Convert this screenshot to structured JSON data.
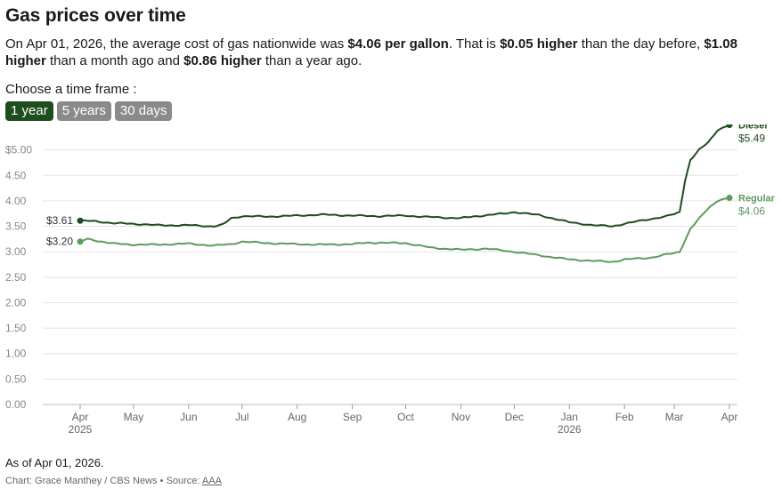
{
  "header": {
    "title": "Gas prices over time"
  },
  "summary": {
    "p1": "On Apr 01, 2026, the average cost of gas nationwide was ",
    "b1": "$4.06 per gallon",
    "p2": ". That is ",
    "b2": "$0.05 higher",
    "p3": " than the day before, ",
    "b3": "$1.08 higher",
    "p4": " than a month ago and ",
    "b4": "$0.86 higher",
    "p5": " than a year ago."
  },
  "timeframe": {
    "label": "Choose a time frame :",
    "options": [
      "1 year",
      "5 years",
      "30 days"
    ],
    "selected": "1 year"
  },
  "footer": {
    "as_of": "As of Apr 01, 2026.",
    "credit": "Chart: Grace Manthey / CBS News • Source: ",
    "source": "AAA"
  },
  "colors": {
    "diesel": "#1e4d1e",
    "regular": "#5e9a5e",
    "grid": "#e4e4e4",
    "axis_text": "#888888"
  },
  "chart_data": {
    "type": "line",
    "x_range": [
      "2025-04-01",
      "2026-04-01"
    ],
    "ylim": [
      0,
      5.5
    ],
    "yticks": [
      0,
      0.5,
      1.0,
      1.5,
      2.0,
      2.5,
      3.0,
      3.5,
      4.0,
      4.5,
      5.0
    ],
    "ytick_labels": [
      "0.00",
      "0.50",
      "1.00",
      "1.50",
      "2.00",
      "2.50",
      "3.00",
      "3.50",
      "4.00",
      "4.50",
      "$5.00"
    ],
    "grid": true,
    "xticks": [
      {
        "date": "2025-04-01",
        "label": "Apr",
        "sub": "2025"
      },
      {
        "date": "2025-05-01",
        "label": "May",
        "sub": ""
      },
      {
        "date": "2025-06-01",
        "label": "Jun",
        "sub": ""
      },
      {
        "date": "2025-07-01",
        "label": "Jul",
        "sub": ""
      },
      {
        "date": "2025-08-01",
        "label": "Aug",
        "sub": ""
      },
      {
        "date": "2025-09-01",
        "label": "Sep",
        "sub": ""
      },
      {
        "date": "2025-10-01",
        "label": "Oct",
        "sub": ""
      },
      {
        "date": "2025-11-01",
        "label": "Nov",
        "sub": ""
      },
      {
        "date": "2025-12-01",
        "label": "Dec",
        "sub": ""
      },
      {
        "date": "2026-01-01",
        "label": "Jan",
        "sub": "2026"
      },
      {
        "date": "2026-02-01",
        "label": "Feb",
        "sub": ""
      },
      {
        "date": "2026-03-01",
        "label": "Mar",
        "sub": ""
      },
      {
        "date": "2026-04-01",
        "label": "Apr",
        "sub": ""
      }
    ],
    "series": [
      {
        "name": "Diesel",
        "start_label": "$3.61",
        "end_label": "$5.49",
        "points": [
          [
            "2025-04-01",
            3.61
          ],
          [
            "2025-04-10",
            3.6
          ],
          [
            "2025-04-20",
            3.56
          ],
          [
            "2025-05-01",
            3.55
          ],
          [
            "2025-05-15",
            3.52
          ],
          [
            "2025-06-01",
            3.52
          ],
          [
            "2025-06-15",
            3.5
          ],
          [
            "2025-06-20",
            3.53
          ],
          [
            "2025-06-25",
            3.66
          ],
          [
            "2025-07-01",
            3.7
          ],
          [
            "2025-07-15",
            3.69
          ],
          [
            "2025-08-01",
            3.71
          ],
          [
            "2025-08-15",
            3.73
          ],
          [
            "2025-09-01",
            3.71
          ],
          [
            "2025-09-15",
            3.7
          ],
          [
            "2025-10-01",
            3.71
          ],
          [
            "2025-10-15",
            3.68
          ],
          [
            "2025-11-01",
            3.66
          ],
          [
            "2025-11-10",
            3.7
          ],
          [
            "2025-11-25",
            3.75
          ],
          [
            "2025-12-01",
            3.78
          ],
          [
            "2025-12-15",
            3.72
          ],
          [
            "2026-01-01",
            3.58
          ],
          [
            "2026-01-15",
            3.52
          ],
          [
            "2026-01-25",
            3.5
          ],
          [
            "2026-02-01",
            3.55
          ],
          [
            "2026-02-15",
            3.64
          ],
          [
            "2026-02-25",
            3.7
          ],
          [
            "2026-03-01",
            3.74
          ],
          [
            "2026-03-04",
            3.78
          ],
          [
            "2026-03-07",
            4.4
          ],
          [
            "2026-03-10",
            4.8
          ],
          [
            "2026-03-15",
            5.0
          ],
          [
            "2026-03-20",
            5.15
          ],
          [
            "2026-03-25",
            5.38
          ],
          [
            "2026-04-01",
            5.49
          ]
        ]
      },
      {
        "name": "Regular",
        "start_label": "$3.20",
        "end_label": "$4.06",
        "points": [
          [
            "2025-04-01",
            3.2
          ],
          [
            "2025-04-05",
            3.25
          ],
          [
            "2025-04-20",
            3.16
          ],
          [
            "2025-05-01",
            3.14
          ],
          [
            "2025-05-15",
            3.14
          ],
          [
            "2025-06-01",
            3.16
          ],
          [
            "2025-06-15",
            3.12
          ],
          [
            "2025-06-25",
            3.15
          ],
          [
            "2025-07-01",
            3.2
          ],
          [
            "2025-07-15",
            3.17
          ],
          [
            "2025-08-01",
            3.15
          ],
          [
            "2025-08-15",
            3.14
          ],
          [
            "2025-09-01",
            3.15
          ],
          [
            "2025-09-10",
            3.18
          ],
          [
            "2025-10-01",
            3.17
          ],
          [
            "2025-10-15",
            3.08
          ],
          [
            "2025-11-01",
            3.04
          ],
          [
            "2025-11-15",
            3.06
          ],
          [
            "2025-12-01",
            3.0
          ],
          [
            "2025-12-15",
            2.93
          ],
          [
            "2026-01-01",
            2.85
          ],
          [
            "2026-01-15",
            2.82
          ],
          [
            "2026-01-25",
            2.8
          ],
          [
            "2026-02-01",
            2.85
          ],
          [
            "2026-02-15",
            2.88
          ],
          [
            "2026-02-25",
            2.95
          ],
          [
            "2026-03-01",
            2.97
          ],
          [
            "2026-03-04",
            3.0
          ],
          [
            "2026-03-10",
            3.45
          ],
          [
            "2026-03-15",
            3.65
          ],
          [
            "2026-03-20",
            3.85
          ],
          [
            "2026-03-25",
            4.0
          ],
          [
            "2026-04-01",
            4.06
          ]
        ]
      }
    ]
  }
}
